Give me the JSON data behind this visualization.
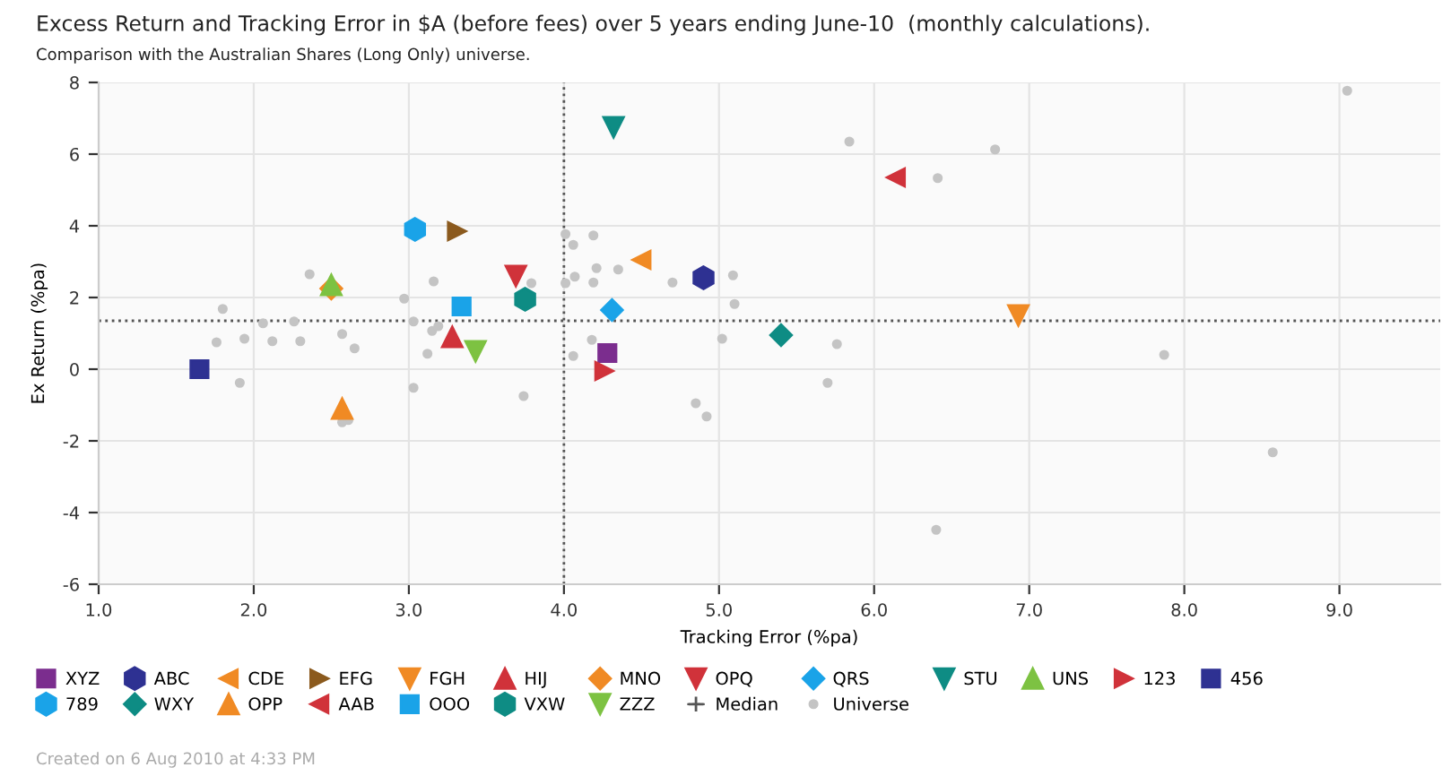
{
  "chart_data": {
    "type": "scatter",
    "title": "Excess Return and Tracking Error in $A (before fees) over 5 years ending June-10  (monthly calculations).",
    "subtitle": "Comparison with the Australian Shares (Long Only) universe.",
    "xlabel": "Tracking Error (%pa)",
    "ylabel": "Ex Return (%pa)",
    "xlim": [
      1,
      9.65
    ],
    "ylim": [
      -6,
      8
    ],
    "xticks": [
      {
        "value": 1,
        "label": "1.0"
      },
      {
        "value": 2,
        "label": "2.0"
      },
      {
        "value": 3,
        "label": "3.0"
      },
      {
        "value": 4,
        "label": "4.0"
      },
      {
        "value": 5,
        "label": "5.0"
      },
      {
        "value": 6,
        "label": "6.0"
      },
      {
        "value": 7,
        "label": "7.0"
      },
      {
        "value": 8,
        "label": "8.0"
      },
      {
        "value": 9,
        "label": "9.0"
      }
    ],
    "yticks": [
      -6,
      -4,
      -2,
      0,
      2,
      4,
      6,
      8
    ],
    "grid": true,
    "legend": "bottom",
    "ref_lines": [
      {
        "axis": "x",
        "value": 4.0,
        "label": "Median",
        "color": "#555555",
        "line_style": "dotted"
      },
      {
        "axis": "y",
        "value": 1.35,
        "color": "#555555",
        "line_style": "dotted"
      }
    ],
    "annotations": [
      "Created on 6 Aug 2010 at 4:33 PM"
    ],
    "series": [
      {
        "name": "XYZ",
        "color": "#7b2d8e",
        "marker": "square",
        "x": [
          4.28
        ],
        "values": [
          0.45
        ]
      },
      {
        "name": "ABC",
        "color": "#2e3192",
        "x": [
          4.9
        ],
        "values": [
          2.55
        ]
      },
      {
        "name": "CDE",
        "color": "#f08a24",
        "marker": "triangle-left",
        "x": [
          4.5
        ],
        "values": [
          3.05
        ]
      },
      {
        "name": "EFG",
        "color": "#8b5a1e",
        "marker": "triangle-right",
        "x": [
          3.31
        ],
        "values": [
          3.85
        ]
      },
      {
        "name": "FGH",
        "color": "#f08a24",
        "marker": "triangle-down",
        "x": [
          6.93
        ],
        "values": [
          1.5
        ]
      },
      {
        "name": "HIJ",
        "color": "#d0323a",
        "marker": "triangle",
        "x": [
          3.28
        ],
        "values": [
          0.9
        ]
      },
      {
        "name": "MNO",
        "color": "#f08a24",
        "marker": "diamond",
        "x": [
          2.5
        ],
        "values": [
          2.25
        ]
      },
      {
        "name": "OPQ",
        "color": "#d0323a",
        "marker": "triangle-down",
        "x": [
          3.69
        ],
        "values": [
          2.6
        ]
      },
      {
        "name": "QRS",
        "color": "#1aa3e8",
        "marker": "diamond",
        "x": [
          4.31
        ],
        "values": [
          1.65
        ]
      },
      {
        "name": "STU",
        "color": "#0e8c84",
        "marker": "triangle-down",
        "x": [
          4.32
        ],
        "values": [
          6.75
        ]
      },
      {
        "name": "UNS",
        "color": "#7dc242",
        "marker": "triangle",
        "x": [
          2.5
        ],
        "values": [
          2.35
        ]
      },
      {
        "name": "123",
        "color": "#d0323a",
        "marker": "triangle-right",
        "x": [
          4.26
        ],
        "values": [
          -0.05
        ]
      },
      {
        "name": "456",
        "color": "#2e3192",
        "marker": "square",
        "x": [
          1.65
        ],
        "values": [
          0.0
        ]
      },
      {
        "name": "789",
        "color": "#1aa3e8",
        "x": [
          3.04
        ],
        "values": [
          3.9
        ]
      },
      {
        "name": "WXY",
        "color": "#0e8c84",
        "marker": "diamond",
        "x": [
          5.4
        ],
        "values": [
          0.95
        ]
      },
      {
        "name": "OPP",
        "color": "#f08a24",
        "marker": "triangle",
        "x": [
          2.57
        ],
        "values": [
          -1.1
        ]
      },
      {
        "name": "AAB",
        "color": "#d0323a",
        "marker": "triangle-left",
        "x": [
          6.14
        ],
        "values": [
          5.35
        ]
      },
      {
        "name": "OOO",
        "color": "#1aa3e8",
        "marker": "square",
        "x": [
          3.34
        ],
        "values": [
          1.75
        ]
      },
      {
        "name": "VXW",
        "color": "#0e8c84",
        "x": [
          3.75
        ],
        "values": [
          1.95
        ]
      },
      {
        "name": "ZZZ",
        "color": "#7dc242",
        "marker": "triangle-down",
        "x": [
          3.43
        ],
        "values": [
          0.5
        ]
      },
      {
        "name": "Universe",
        "color": "#c4c4c4",
        "marker": "point",
        "x": [
          1.8,
          1.76,
          1.94,
          1.91,
          2.06,
          2.12,
          2.26,
          2.3,
          2.36,
          2.57,
          2.65,
          2.57,
          2.61,
          2.97,
          3.03,
          3.03,
          3.15,
          3.16,
          3.19,
          3.12,
          3.79,
          3.74,
          4.01,
          4.06,
          4.19,
          4.01,
          4.07,
          4.21,
          4.35,
          4.19,
          4.7,
          5.09,
          5.1,
          5.02,
          4.18,
          4.06,
          4.85,
          4.92,
          5.76,
          5.7,
          5.84,
          6.41,
          6.78,
          6.4,
          9.05,
          7.87,
          8.57
        ],
        "values": [
          1.68,
          0.75,
          0.85,
          -0.38,
          1.28,
          0.78,
          1.33,
          0.78,
          2.65,
          0.98,
          0.58,
          -1.48,
          -1.42,
          1.97,
          1.33,
          -0.52,
          1.07,
          2.45,
          1.2,
          0.43,
          2.4,
          -0.75,
          3.77,
          3.47,
          3.73,
          2.4,
          2.58,
          2.82,
          2.78,
          2.42,
          2.42,
          2.62,
          1.82,
          0.85,
          0.82,
          0.37,
          -0.95,
          -1.32,
          0.7,
          -0.38,
          6.35,
          5.33,
          6.13,
          -4.48,
          7.77,
          0.4,
          -2.32
        ]
      }
    ]
  }
}
